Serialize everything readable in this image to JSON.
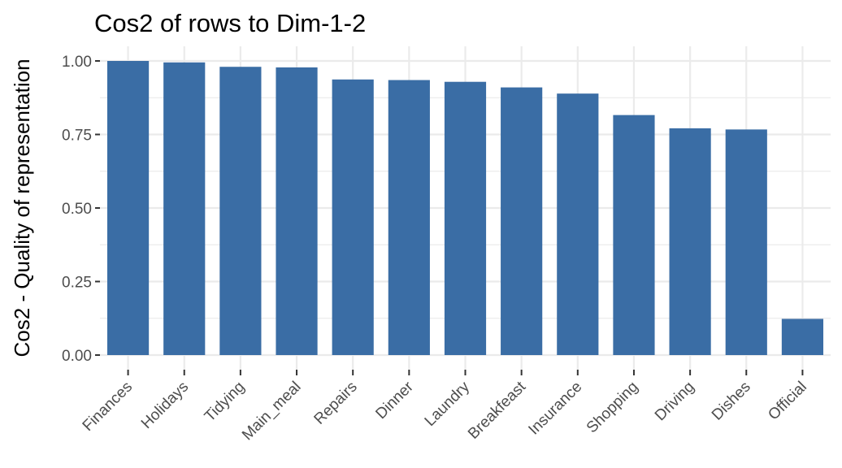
{
  "chart_data": {
    "type": "bar",
    "title": "Cos2 of rows to Dim-1-2",
    "xlabel": "",
    "ylabel": "Cos2 - Quality of representation",
    "categories": [
      "Finances",
      "Holidays",
      "Tidying",
      "Main_meal",
      "Repairs",
      "Dinner",
      "Laundry",
      "Breakfeast",
      "Insurance",
      "Shopping",
      "Driving",
      "Dishes",
      "Official"
    ],
    "values": [
      1.0,
      0.995,
      0.98,
      0.978,
      0.937,
      0.935,
      0.929,
      0.91,
      0.889,
      0.816,
      0.771,
      0.767,
      0.123
    ],
    "ylim": [
      0,
      1.0
    ],
    "yticks": [
      0.0,
      0.25,
      0.5,
      0.75,
      1.0
    ],
    "ytick_labels": [
      "0.00",
      "0.25",
      "0.50",
      "0.75",
      "1.00"
    ],
    "grid": true,
    "bar_color": "#3A6DA5",
    "grid_color": "#EBEBEB",
    "tick_color": "#333333"
  }
}
